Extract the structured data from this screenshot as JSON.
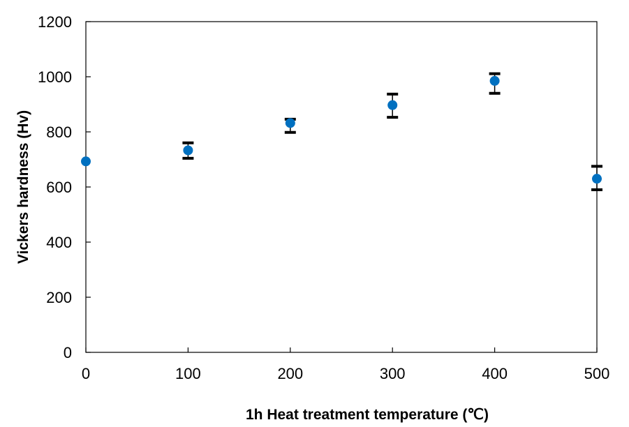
{
  "chart_data": {
    "type": "scatter",
    "title": "",
    "xlabel": "1h Heat treatment temperature (℃)",
    "ylabel": "Vickers hardness (Hv)",
    "xlim": [
      0,
      500
    ],
    "ylim": [
      0,
      1200
    ],
    "x_ticks": [
      0,
      100,
      200,
      300,
      400,
      500
    ],
    "y_ticks": [
      0,
      200,
      400,
      600,
      800,
      1000,
      1200
    ],
    "grid": false,
    "legend": "none",
    "series": [
      {
        "x": [
          0,
          100,
          200,
          300,
          400,
          500
        ],
        "y": [
          693,
          733,
          832,
          897,
          985,
          630
        ],
        "error_low": [
          null,
          704,
          798,
          853,
          940,
          590
        ],
        "error_high": [
          null,
          760,
          846,
          937,
          1011,
          675
        ],
        "color": "#0070c0"
      }
    ]
  }
}
